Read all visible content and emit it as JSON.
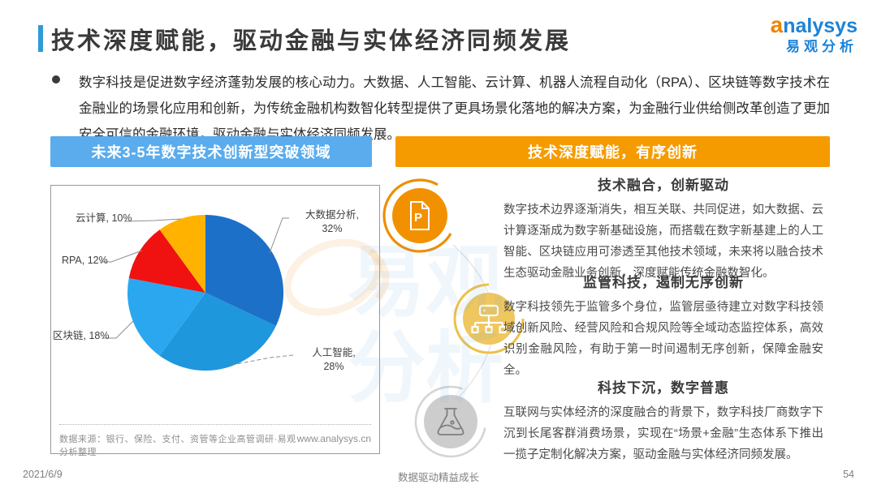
{
  "header": {
    "title": "技术深度赋能，驱动金融与实体经济同频发展",
    "logo_text": "analysys",
    "logo_sub": "易观分析"
  },
  "intro": {
    "text": "数字科技是促进数字经济蓬勃发展的核心动力。大数据、人工智能、云计算、机器人流程自动化（RPA）、区块链等数字技术在金融业的场景化应用和创新，为传统金融机构数智化转型提供了更具场景化落地的解决方案，为金融行业供给侧改革创造了更加安全可信的金融环境，驱动金融与实体经济同频发展。"
  },
  "banners": {
    "left": "未来3-5年数字技术创新型突破领域",
    "right": "技术深度赋能，有序创新"
  },
  "colors": {
    "accent_blue": "#5BACEC",
    "accent_orange": "#F59B00",
    "header_bar_blue": "#2E9BD9",
    "logo_blue": "#1C83D6"
  },
  "chart_data": {
    "type": "pie",
    "title": "未来3-5年数字技术创新型突破领域",
    "start": "12-oclock-clockwise",
    "legend": "none",
    "labels_outside": true,
    "slices": [
      {
        "id": "big-data",
        "name": "大数据分析",
        "value": 32,
        "pct": "32%",
        "color": "#1C70C8",
        "callout_lines": [
          "大数据分析,",
          "32%"
        ]
      },
      {
        "id": "ai",
        "name": "人工智能",
        "value": 28,
        "pct": "28%",
        "color": "#1E97DC",
        "callout_lines": [
          "人工智能,",
          "28%"
        ]
      },
      {
        "id": "blockchain",
        "name": "区块链",
        "value": 18,
        "pct": "18%",
        "color": "#2BA7F0",
        "callout_lines": [
          "区块链, 18%"
        ]
      },
      {
        "id": "rpa",
        "name": "RPA",
        "value": 12,
        "pct": "12%",
        "color": "#F01111",
        "callout_lines": [
          "RPA, 12%"
        ]
      },
      {
        "id": "cloud",
        "name": "云计算",
        "value": 10,
        "pct": "10%",
        "color": "#FFB300",
        "callout_lines": [
          "云计算, 10%"
        ]
      }
    ],
    "source": "数据来源：银行、保险、支付、资管等企业高管调研·易观分析整理",
    "website": "www.analysys.cn"
  },
  "right_panel": {
    "sections": [
      {
        "title": "技术融合，创新驱动",
        "body": "数字技术边界逐渐消失，相互关联、共同促进，如大数据、云计算逐渐成为数字新基础设施，而搭载在数字新基建上的人工智能、区块链应用可渗透至其他技术领域，未来将以融合技术生态驱动金融业务创新，深度赋能传统金融数智化。",
        "icon": "document-p-icon",
        "circle_color": "#F29100"
      },
      {
        "title": "监管科技，遏制无序创新",
        "body": "数字科技领先于监管多个身位，监管层亟待建立对数字科技领域创新风险、经营风险和合规风险等全域动态监控体系，高效识别金融风险，有助于第一时间遏制无序创新，保障金融安全。",
        "icon": "org-chart-icon",
        "circle_color": "#EFC75E"
      },
      {
        "title": "科技下沉，数字普惠",
        "body": "互联网与实体经济的深度融合的背景下，数字科技厂商数字下沉到长尾客群消费场景，实现在“场景+金融”生态体系下推出一揽子定制化解决方案，驱动金融与实体经济同频发展。",
        "icon": "flask-icon",
        "circle_color": "#CDCDCD"
      }
    ]
  },
  "watermark": "易观分析",
  "footer": {
    "date": "2021/6/9",
    "slogan": "数据驱动精益成长",
    "page": "54"
  }
}
